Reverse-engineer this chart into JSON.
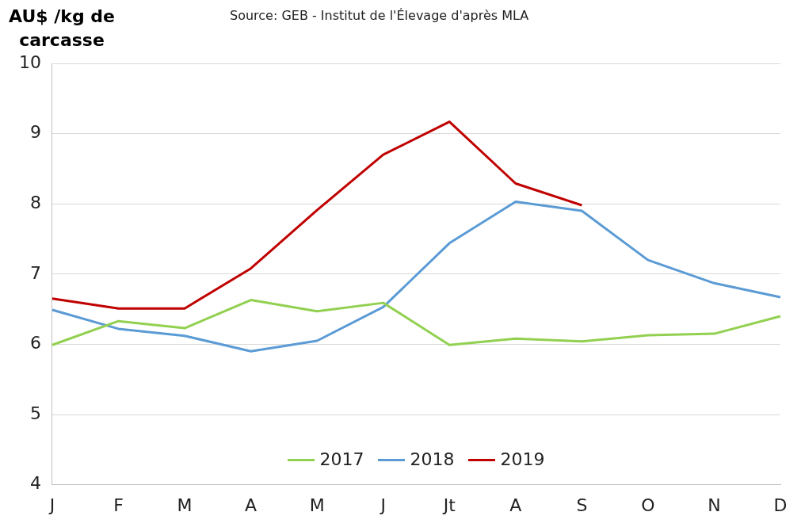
{
  "chart_data": {
    "type": "line",
    "ylabel": "AU$ /kg de carcasse",
    "annotations": [
      "Source: GEB - Institut de l'Élevage d'après MLA"
    ],
    "categories": [
      "J",
      "F",
      "M",
      "A",
      "M",
      "J",
      "Jt",
      "A",
      "S",
      "O",
      "N",
      "D"
    ],
    "series": [
      {
        "name": "2017",
        "color": "#92d050",
        "values": [
          5.99,
          6.33,
          6.23,
          6.63,
          6.47,
          6.59,
          5.99,
          6.08,
          6.04,
          6.13,
          6.15,
          6.4
        ]
      },
      {
        "name": "2018",
        "color": "#5b9bd5",
        "values": [
          6.49,
          6.22,
          6.12,
          5.9,
          6.05,
          6.53,
          7.44,
          8.03,
          7.9,
          7.2,
          6.87,
          6.67
        ]
      },
      {
        "name": "2019",
        "color": "#c00000",
        "values": [
          6.65,
          6.51,
          6.51,
          7.08,
          7.91,
          8.7,
          9.17,
          8.29,
          7.98,
          null,
          null,
          null
        ]
      }
    ],
    "ylim": [
      4,
      10
    ],
    "yticks": [
      4,
      5,
      6,
      7,
      8,
      9,
      10
    ],
    "grid": "y",
    "legend": "bottom",
    "marker": "none",
    "line_style": "solid"
  }
}
